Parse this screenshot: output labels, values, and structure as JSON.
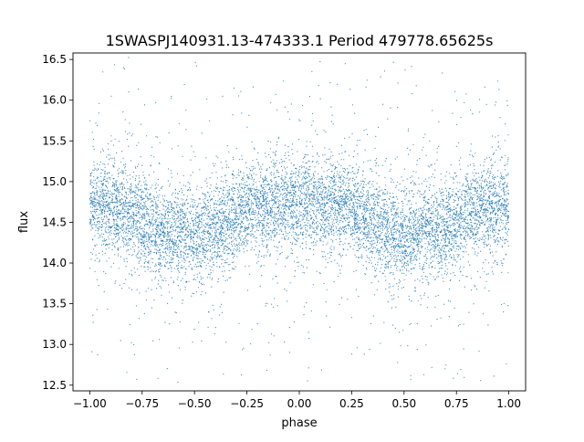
{
  "chart_data": {
    "type": "scatter",
    "title": "1SWASPJ140931.13-474333.1 Period 479778.65625s",
    "xlabel": "phase",
    "ylabel": "flux",
    "xlim": [
      -1.08,
      1.08
    ],
    "ylim": [
      12.43,
      16.58
    ],
    "xticks": [
      -1.0,
      -0.75,
      -0.5,
      -0.25,
      0.0,
      0.25,
      0.5,
      0.75,
      1.0
    ],
    "xtick_labels": [
      "−1.00",
      "−0.75",
      "−0.50",
      "−0.25",
      "0.00",
      "0.25",
      "0.50",
      "0.75",
      "1.00"
    ],
    "yticks": [
      12.5,
      13.0,
      13.5,
      14.0,
      14.5,
      15.0,
      15.5,
      16.0,
      16.5
    ],
    "ytick_labels": [
      "12.5",
      "13.0",
      "13.5",
      "14.0",
      "14.5",
      "15.0",
      "15.5",
      "16.0",
      "16.5"
    ],
    "grid": false,
    "legend": "none",
    "point_color": "#1f77b4",
    "phase_range": [
      -1.0,
      1.0
    ],
    "mean_flux_curve": {
      "phase": [
        0.0,
        0.05,
        0.1,
        0.15,
        0.2,
        0.25,
        0.3,
        0.35,
        0.4,
        0.45,
        0.5,
        0.55,
        0.6,
        0.65,
        0.7,
        0.75,
        0.8,
        0.85,
        0.9,
        0.95,
        1.0
      ],
      "flux": [
        14.72,
        14.75,
        14.72,
        14.68,
        14.7,
        14.66,
        14.6,
        14.5,
        14.42,
        14.36,
        14.3,
        14.35,
        14.4,
        14.36,
        14.42,
        14.52,
        14.6,
        14.64,
        14.68,
        14.7,
        14.72
      ]
    },
    "core_scatter_sd": 0.28
  }
}
